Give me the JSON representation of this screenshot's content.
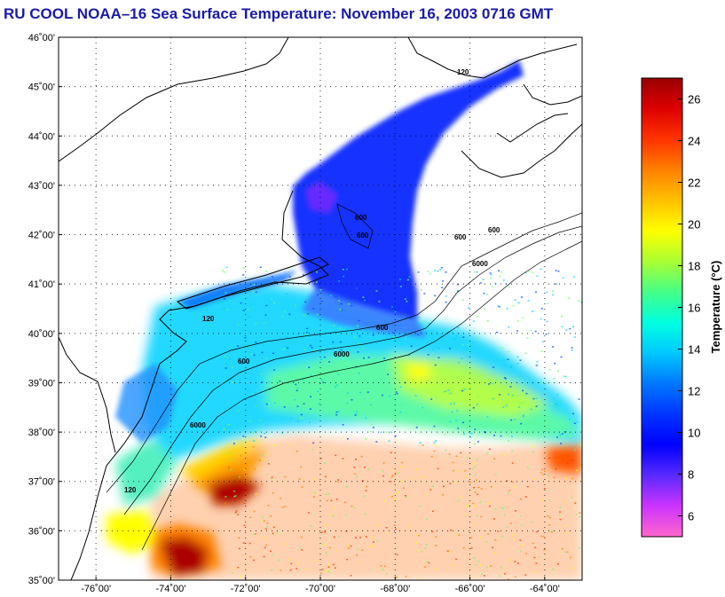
{
  "title": "RU COOL  NOAA–16  Sea Surface Temperature:  November 16, 2003 0716 GMT",
  "map": {
    "lon_range": [
      -77,
      -63
    ],
    "lat_range": [
      35,
      46
    ],
    "lon_ticks": [
      {
        "value": -76,
        "label": "-76˚00'"
      },
      {
        "value": -74,
        "label": "-74˚00'"
      },
      {
        "value": -72,
        "label": "-72˚00'"
      },
      {
        "value": -70,
        "label": "-70˚00'"
      },
      {
        "value": -68,
        "label": "-68˚00'"
      },
      {
        "value": -66,
        "label": "-66˚00'"
      },
      {
        "value": -64,
        "label": "-64˚00'"
      }
    ],
    "lat_ticks": [
      {
        "value": 46,
        "label": "46˚00'"
      },
      {
        "value": 45,
        "label": "45˚00'"
      },
      {
        "value": 44,
        "label": "44˚00'"
      },
      {
        "value": 43,
        "label": "43˚00'"
      },
      {
        "value": 42,
        "label": "42˚00'"
      },
      {
        "value": 41,
        "label": "41˚00'"
      },
      {
        "value": 40,
        "label": "40˚00'"
      },
      {
        "value": 39,
        "label": "39˚00'"
      },
      {
        "value": 38,
        "label": "38˚00'"
      },
      {
        "value": 37,
        "label": "37˚00'"
      },
      {
        "value": 36,
        "label": "36˚00'"
      },
      {
        "value": 35,
        "label": "35˚00'"
      }
    ],
    "grid": "dotted",
    "isobath_labels": [
      "120",
      "600",
      "6000"
    ]
  },
  "colorbar": {
    "title": "Temperature (°C)",
    "range": [
      5,
      27
    ],
    "ticks": [
      "6",
      "8",
      "10",
      "12",
      "14",
      "16",
      "18",
      "20",
      "22",
      "24",
      "26"
    ],
    "colors": [
      "#ff66cc",
      "#cc33ff",
      "#5a2aff",
      "#0000ff",
      "#0033ff",
      "#0077ff",
      "#00c8ff",
      "#00ffe0",
      "#44ff88",
      "#aaff33",
      "#ffff00",
      "#ffc000",
      "#ff8000",
      "#ff3300",
      "#dd0000",
      "#990000"
    ]
  }
}
